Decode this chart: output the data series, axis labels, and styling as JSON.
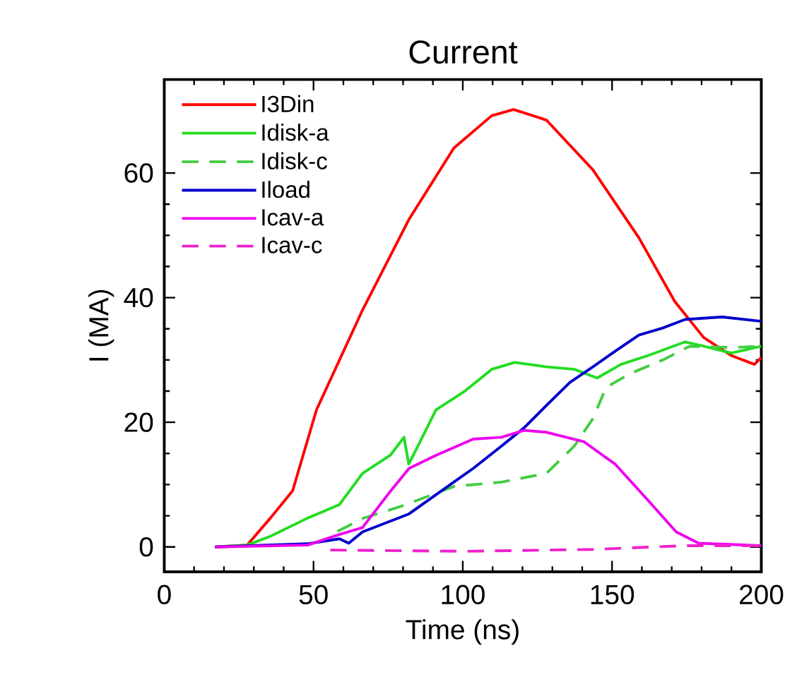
{
  "chart_data": {
    "type": "line",
    "title": "Current",
    "xlabel": "Time (ns)",
    "ylabel": "I (MA)",
    "xlim": [
      0,
      200
    ],
    "ylim": [
      -4,
      75
    ],
    "xticks": [
      0,
      50,
      100,
      150,
      200
    ],
    "yticks": [
      0,
      20,
      40,
      60
    ],
    "grid": false,
    "legend": "top left",
    "marker": "none",
    "series": [
      {
        "name": "I3Din",
        "color": "#ff0000",
        "line_style": "solid",
        "x": [
          17,
          27.8,
          35.5,
          43,
          51,
          66.4,
          81.9,
          97,
          109.7,
          117,
          128,
          143.6,
          159,
          171,
          180.7,
          190,
          197.7,
          200
        ],
        "values": [
          0,
          0.3,
          4.6,
          9,
          22,
          38,
          52.5,
          64,
          69.2,
          70.2,
          68.5,
          60.5,
          49.6,
          39.4,
          33.6,
          30.7,
          29.3,
          30.4
        ]
      },
      {
        "name": "Idisk-a",
        "color": "#22dd22",
        "line_style": "solid",
        "x": [
          17,
          27.8,
          35.5,
          47.9,
          58.7,
          66.4,
          75.7,
          80.3,
          81.9,
          85,
          91,
          100.4,
          109.7,
          117.4,
          128,
          137.4,
          145,
          153,
          162,
          174.5,
          180.7,
          190,
          200
        ],
        "values": [
          0,
          0.3,
          1.7,
          4.6,
          6.8,
          11.8,
          14.7,
          17.6,
          13.3,
          16.2,
          22,
          24.9,
          28.5,
          29.6,
          28.9,
          28.5,
          27.1,
          29.3,
          30.7,
          32.9,
          32.2,
          31.1,
          32.2
        ]
      },
      {
        "name": "Idisk-c",
        "color": "#44cc44",
        "line_style": "dashed",
        "x": [
          58,
          66.7,
          80.5,
          97,
          113,
          128,
          137.4,
          143.6,
          148,
          156,
          167,
          176,
          190,
          200
        ],
        "values": [
          2.5,
          4.6,
          6.7,
          9.7,
          10.4,
          11.8,
          16.2,
          20.6,
          25.6,
          27.8,
          30,
          32.2,
          32,
          32.2
        ]
      },
      {
        "name": "Iload",
        "color": "#0000cc",
        "line_style": "solid",
        "x": [
          17,
          47.9,
          58.7,
          61.8,
          66.4,
          82,
          97,
          103.5,
          113,
          120.5,
          128,
          135.9,
          143.6,
          151,
          159,
          166.8,
          174.5,
          186.9,
          200
        ],
        "values": [
          0,
          0.5,
          1.3,
          0.6,
          2.4,
          5.3,
          10.4,
          12.6,
          16.2,
          19.1,
          22.7,
          26.4,
          28.9,
          31.4,
          34,
          35.1,
          36.5,
          36.9,
          36.2
        ]
      },
      {
        "name": "Icav-a",
        "color": "#ee00ee",
        "line_style": "solid",
        "x": [
          17,
          48,
          58.7,
          66.4,
          75.7,
          82,
          91,
          103.5,
          113,
          120.5,
          128,
          140.5,
          151,
          162,
          171.5,
          179,
          200
        ],
        "values": [
          0,
          0.3,
          2,
          3.1,
          8.9,
          12.6,
          14.7,
          17.3,
          17.6,
          18.7,
          18.4,
          16.9,
          13.3,
          7.5,
          2.4,
          0.6,
          0.2
        ]
      },
      {
        "name": "Icav-c",
        "color": "#ee22cc",
        "line_style": "dashed",
        "x": [
          55.6,
          100.4,
          143.6,
          174.5,
          200
        ],
        "values": [
          -0.5,
          -0.7,
          -0.4,
          0.2,
          0.2
        ]
      }
    ]
  }
}
